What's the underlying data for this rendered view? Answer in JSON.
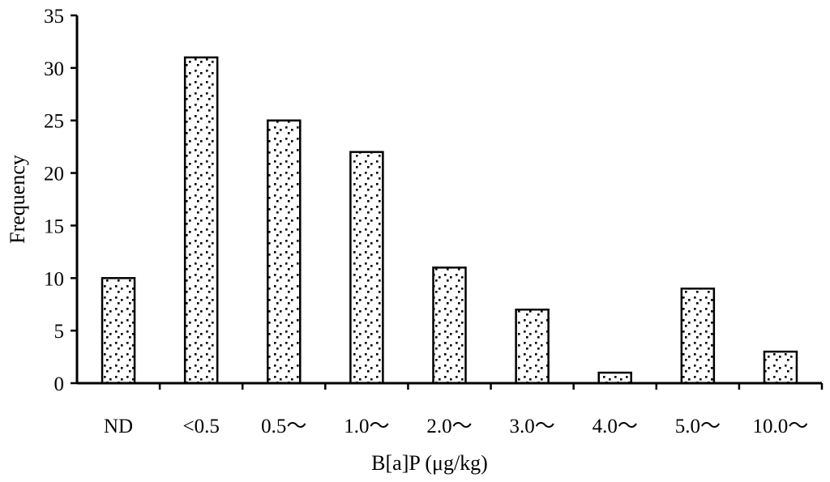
{
  "chart_data": {
    "type": "bar",
    "categories": [
      "ND",
      "<0.5",
      "0.5～",
      "1.0～",
      "2.0～",
      "3.0～",
      "4.0～",
      "5.0～",
      "10.0～"
    ],
    "values": [
      10,
      31,
      25,
      22,
      11,
      7,
      1,
      9,
      3
    ],
    "xlabel": "B[a]P (μg/kg)",
    "ylabel": "Frequency",
    "ylim": [
      0,
      35
    ],
    "yticks": [
      0,
      5,
      10,
      15,
      20,
      25,
      30,
      35
    ],
    "grid": false,
    "legend": "none",
    "bar_fill": "dotted pattern"
  }
}
